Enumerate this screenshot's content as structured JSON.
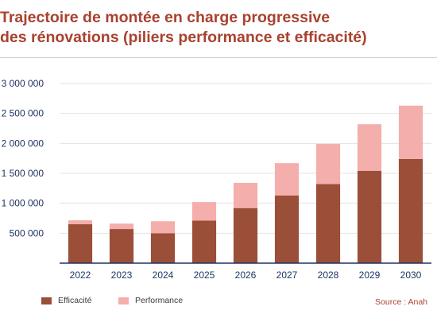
{
  "title": {
    "line1": "Trajectoire de montée en charge progressive",
    "line2": "des rénovations (piliers performance et efficacité)"
  },
  "colors": {
    "title": "#a9422f",
    "efficacite": "#9b4f38",
    "performance": "#f4aeab",
    "axis_text": "#1f3561",
    "grid": "#e3e3e3",
    "baseline": "#1f3561"
  },
  "legend": {
    "efficacite": "Efficacité",
    "performance": "Performance"
  },
  "source": "Source : Anah",
  "chart_data": {
    "type": "bar",
    "stacked": true,
    "categories": [
      "2022",
      "2023",
      "2024",
      "2025",
      "2026",
      "2027",
      "2028",
      "2029",
      "2030"
    ],
    "series": [
      {
        "name": "Efficacité",
        "values": [
          650000,
          570000,
          500000,
          710000,
          920000,
          1130000,
          1320000,
          1540000,
          1740000
        ]
      },
      {
        "name": "Performance",
        "values": [
          65000,
          90000,
          200000,
          310000,
          420000,
          540000,
          670000,
          780000,
          890000
        ]
      }
    ],
    "ylim": [
      0,
      3000000
    ],
    "yticks": [
      500000,
      1000000,
      1500000,
      2000000,
      2500000,
      3000000
    ],
    "ytick_labels": [
      "500 000",
      "1 000 000",
      "1 500 000",
      "2 000 000",
      "2 500 000",
      "3 000 000"
    ],
    "grid": true,
    "legend_position": "bottom-left"
  }
}
